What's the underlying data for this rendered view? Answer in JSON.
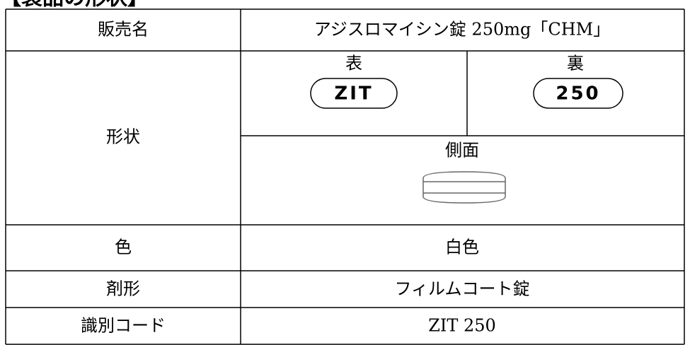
{
  "heading": "【製品の形状】",
  "table": {
    "product_name_label": "販売名",
    "product_name": "アジスロマイシン錠 250mg「CHM」",
    "shape_label": "形状",
    "front_label": "表",
    "front_imprint": "ZIT",
    "back_label": "裏",
    "back_imprint": "250",
    "side_label": "側面",
    "color_label": "色",
    "color": "白色",
    "form_label": "剤形",
    "form": "フィルムコート錠",
    "code_label": "識別コード",
    "code": "ZIT 250"
  }
}
